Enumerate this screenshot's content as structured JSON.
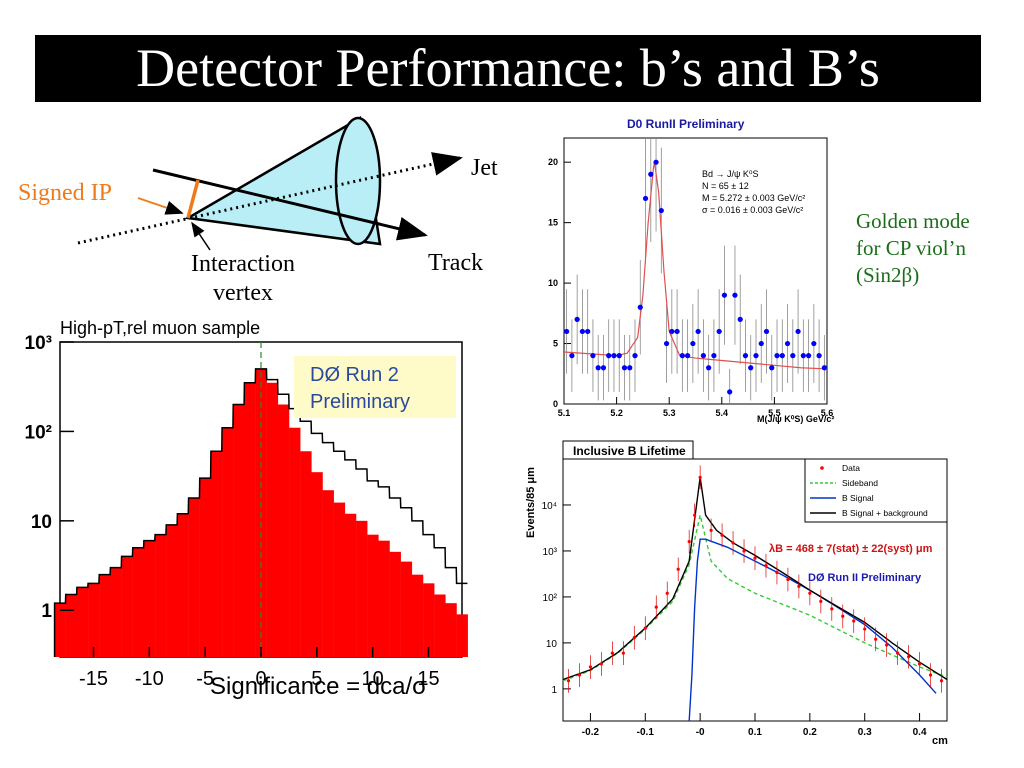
{
  "slide": {
    "title": "Detector Performance: b’s and B’s",
    "golden_note": [
      "Golden mode",
      "for CP viol’n",
      "(Sin2β)"
    ]
  },
  "diagram": {
    "labels": {
      "jet": "Jet",
      "signed_ip": "Signed IP",
      "interaction_vertex": [
        "Interaction",
        "vertex"
      ],
      "track": "Track"
    },
    "colors": {
      "cone": "#b9eef6",
      "signed_ip": "#f07a1a"
    }
  },
  "chart_data": [
    {
      "type": "area",
      "title": "High-pT,rel muon sample",
      "xlabel": "Significance = dca/σ",
      "ylabel": "",
      "xlim": [
        -18,
        18
      ],
      "ylim_log": [
        0.3,
        1000
      ],
      "x_ticks": [
        "-15",
        "-10",
        "-5",
        "0",
        "5",
        "10",
        "15"
      ],
      "x_tick_values": [
        -15,
        -10,
        -5,
        0,
        5,
        10,
        15
      ],
      "y_ticks": [
        "1",
        "10",
        "10²",
        "10³"
      ],
      "y_tick_values": [
        1,
        10,
        100,
        1000
      ],
      "annotation": [
        "DØ Run 2",
        "Preliminary"
      ],
      "series": [
        {
          "role": "outline",
          "x": [
            -18,
            -17,
            -16,
            -15,
            -14,
            -13,
            -12,
            -11,
            -10,
            -9,
            -8,
            -7,
            -6,
            -5,
            -4,
            -3,
            -2,
            -1,
            0,
            1,
            2,
            3,
            4,
            5,
            6,
            7,
            8,
            9,
            10,
            11,
            12,
            13,
            14,
            15,
            16,
            17,
            18
          ],
          "values": [
            1.2,
            1.5,
            1.8,
            2,
            2.5,
            3,
            4,
            5,
            6,
            7,
            9,
            12,
            18,
            30,
            60,
            110,
            200,
            350,
            500,
            380,
            260,
            180,
            130,
            95,
            75,
            60,
            48,
            38,
            28,
            24,
            18,
            14,
            10,
            7,
            5,
            3,
            2
          ]
        },
        {
          "role": "filled",
          "color": "#ff0000",
          "x": [
            -18,
            -17,
            -16,
            -15,
            -14,
            -13,
            -12,
            -11,
            -10,
            -9,
            -8,
            -7,
            -6,
            -5,
            -4,
            -3,
            -2,
            -1,
            0,
            1,
            2,
            3,
            4,
            5,
            6,
            7,
            8,
            9,
            10,
            11,
            12,
            13,
            14,
            15,
            16,
            17,
            18
          ],
          "values": [
            1.2,
            1.5,
            1.8,
            2,
            2.5,
            3,
            4,
            5,
            6,
            7,
            9,
            12,
            18,
            30,
            60,
            110,
            200,
            350,
            500,
            350,
            200,
            110,
            60,
            35,
            22,
            16,
            12,
            10,
            7,
            6,
            4.5,
            3.5,
            2.5,
            2,
            1.5,
            1.2,
            0.9
          ]
        }
      ]
    },
    {
      "type": "scatter",
      "title": "D0 RunII  Preliminary",
      "xlabel": "M(J/ψ K⁰S) GeV/c²",
      "ylabel": "",
      "xlim": [
        5.1,
        5.6
      ],
      "ylim": [
        0,
        22
      ],
      "x_ticks": [
        "5.1",
        "5.2",
        "5.3",
        "5.4",
        "5.5",
        "5.6"
      ],
      "x_tick_values": [
        5.1,
        5.2,
        5.3,
        5.4,
        5.5,
        5.6
      ],
      "y_ticks": [
        "0",
        "5",
        "10",
        "15",
        "20"
      ],
      "y_tick_values": [
        0,
        5,
        10,
        15,
        20
      ],
      "legend_text": [
        "Bd → J/ψ K⁰S",
        "N =  65 ± 12",
        "M =  5.272 ± 0.003 GeV/c²",
        "σ = 0.016 ± 0.003 GeV/c²"
      ],
      "series": [
        {
          "name": "",
          "role": "data",
          "color": "#0000ff",
          "x": [
            5.105,
            5.115,
            5.125,
            5.135,
            5.145,
            5.155,
            5.165,
            5.175,
            5.185,
            5.195,
            5.205,
            5.215,
            5.225,
            5.235,
            5.245,
            5.255,
            5.265,
            5.275,
            5.285,
            5.295,
            5.305,
            5.315,
            5.325,
            5.335,
            5.345,
            5.355,
            5.365,
            5.375,
            5.385,
            5.395,
            5.405,
            5.415,
            5.425,
            5.435,
            5.445,
            5.455,
            5.465,
            5.475,
            5.485,
            5.495,
            5.505,
            5.515,
            5.525,
            5.535,
            5.545,
            5.555,
            5.565,
            5.575,
            5.585,
            5.595
          ],
          "values": [
            6,
            4,
            7,
            6,
            6,
            4,
            3,
            3,
            4,
            4,
            4,
            3,
            3,
            4,
            8,
            17,
            19,
            20,
            16,
            5,
            6,
            6,
            4,
            4,
            5,
            6,
            4,
            3,
            4,
            6,
            9,
            1,
            9,
            7,
            4,
            3,
            4,
            5,
            6,
            3,
            4,
            4,
            5,
            4,
            6,
            4,
            4,
            5,
            4,
            3
          ]
        },
        {
          "name": "",
          "role": "fit",
          "color": "#e05050",
          "x": [
            5.1,
            5.2,
            5.22,
            5.24,
            5.25,
            5.26,
            5.27,
            5.272,
            5.28,
            5.29,
            5.3,
            5.32,
            5.35,
            5.4,
            5.45,
            5.5,
            5.55,
            5.6
          ],
          "values": [
            4.3,
            4.0,
            4.2,
            5.5,
            9.0,
            15.0,
            19.5,
            20.0,
            17.5,
            11.0,
            6.0,
            4.0,
            3.8,
            3.6,
            3.4,
            3.2,
            3.0,
            2.9
          ]
        }
      ]
    },
    {
      "type": "line",
      "title": "Inclusive B Lifetime",
      "xlabel": "cm",
      "ylabel": "Events/85 μm",
      "xlim": [
        -0.25,
        0.45
      ],
      "ylim_log": [
        0.2,
        100000
      ],
      "x_ticks": [
        "-0.2",
        "-0.1",
        "-0",
        "0.1",
        "0.2",
        "0.3",
        "0.4"
      ],
      "x_tick_values": [
        -0.2,
        -0.1,
        0,
        0.1,
        0.2,
        0.3,
        0.4
      ],
      "y_ticks": [
        "1",
        "10",
        "10²",
        "10³",
        "10⁴"
      ],
      "y_tick_values": [
        1,
        10,
        100,
        1000,
        10000
      ],
      "annotations": [
        "λB = 468 ± 7(stat) ± 22(syst) μm",
        "DØ Run II Preliminary"
      ],
      "legend": [
        "Data",
        "Sideband",
        "B Signal",
        "B Signal + background"
      ],
      "series": [
        {
          "name": "Data",
          "color": "#ff0000",
          "x": [
            -0.24,
            -0.22,
            -0.2,
            -0.18,
            -0.16,
            -0.14,
            -0.12,
            -0.1,
            -0.08,
            -0.06,
            -0.04,
            -0.02,
            -0.01,
            0,
            0.02,
            0.04,
            0.06,
            0.08,
            0.1,
            0.12,
            0.14,
            0.16,
            0.18,
            0.2,
            0.22,
            0.24,
            0.26,
            0.28,
            0.3,
            0.32,
            0.34,
            0.36,
            0.38,
            0.4,
            0.42,
            0.44
          ],
          "values": [
            1.5,
            2,
            3,
            3.5,
            6,
            6,
            13,
            21,
            60,
            120,
            400,
            1600,
            6000,
            40000,
            2800,
            2200,
            1500,
            1000,
            700,
            480,
            340,
            240,
            170,
            120,
            80,
            55,
            38,
            30,
            20,
            12,
            9,
            6,
            5,
            3.5,
            2,
            1.5
          ]
        },
        {
          "name": "Sideband",
          "color": "#33cc33",
          "x": [
            -0.25,
            -0.2,
            -0.15,
            -0.1,
            -0.05,
            -0.02,
            0,
            0.02,
            0.05,
            0.1,
            0.2,
            0.3,
            0.4,
            0.45
          ],
          "values": [
            1.5,
            2.5,
            6,
            20,
            80,
            500,
            6000,
            600,
            250,
            120,
            40,
            10,
            3,
            1.8
          ]
        },
        {
          "name": "B Signal",
          "color": "#0033cc",
          "x": [
            -0.02,
            -0.015,
            -0.01,
            -0.005,
            0,
            0.01,
            0.05,
            0.1,
            0.15,
            0.2,
            0.25,
            0.3,
            0.35,
            0.4,
            0.43
          ],
          "values": [
            0.2,
            2,
            60,
            600,
            1800,
            1800,
            1200,
            600,
            300,
            140,
            60,
            25,
            8,
            2,
            0.8
          ]
        },
        {
          "name": "B Signal + background",
          "color": "#000000",
          "x": [
            -0.25,
            -0.2,
            -0.15,
            -0.1,
            -0.05,
            -0.02,
            0,
            0.01,
            0.03,
            0.06,
            0.1,
            0.15,
            0.2,
            0.25,
            0.3,
            0.35,
            0.4,
            0.45
          ],
          "values": [
            1.6,
            2.6,
            6.2,
            21,
            90,
            600,
            40000,
            6000,
            2800,
            1500,
            800,
            340,
            140,
            62,
            28,
            10,
            3.8,
            1.6
          ]
        }
      ]
    }
  ]
}
